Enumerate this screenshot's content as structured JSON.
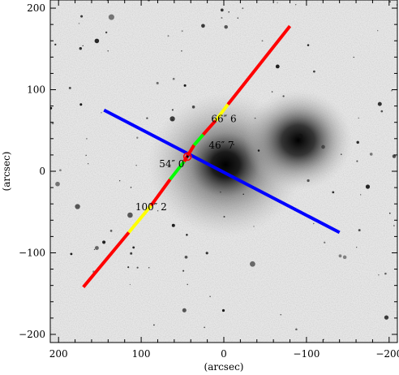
{
  "chart_data": {
    "type": "scatter",
    "title": "",
    "xlabel": "(arcsec)",
    "ylabel": "(arcsec)",
    "xlim": [
      210,
      -210
    ],
    "ylim": [
      -210,
      210
    ],
    "x_ticks": [
      200,
      100,
      0,
      -100,
      -200
    ],
    "x_tick_labels": [
      "200",
      "100",
      "0",
      "−100",
      "−200"
    ],
    "y_ticks": [
      -200,
      -100,
      0,
      100,
      200
    ],
    "y_tick_labels": [
      "−200",
      "−100",
      "0",
      "100",
      "200"
    ],
    "background": "grayscale sky image of galaxy field",
    "galaxies": [
      {
        "x": -2,
        "y": 8,
        "size": 40,
        "name": "central-galaxy"
      },
      {
        "x": -90,
        "y": 38,
        "size": 28,
        "name": "bright-galaxy-east"
      }
    ],
    "lines": [
      {
        "name": "blue-slit",
        "color": "#0000ff",
        "points": [
          [
            145,
            75
          ],
          [
            -140,
            -75
          ]
        ]
      },
      {
        "name": "color-coded-slit",
        "segments": [
          {
            "from": [
              170,
              -142
            ],
            "to": [
              115,
              -75
            ],
            "color": "#ff0000"
          },
          {
            "from": [
              115,
              -75
            ],
            "to": [
              88,
              -42
            ],
            "color": "#ffff00"
          },
          {
            "from": [
              88,
              -42
            ],
            "to": [
              65,
              -10
            ],
            "color": "#ff0000"
          },
          {
            "from": [
              65,
              -10
            ],
            "to": [
              48,
              12
            ],
            "color": "#00ff00"
          },
          {
            "from": [
              48,
              12
            ],
            "to": [
              36,
              32
            ],
            "color": "#ff0000"
          },
          {
            "from": [
              36,
              32
            ],
            "to": [
              25,
              45
            ],
            "color": "#00ff00"
          },
          {
            "from": [
              25,
              45
            ],
            "to": [
              10,
              62
            ],
            "color": "#ff0000"
          },
          {
            "from": [
              10,
              62
            ],
            "to": [
              -5,
              82
            ],
            "color": "#ffff00"
          },
          {
            "from": [
              -5,
              82
            ],
            "to": [
              -80,
              178
            ],
            "color": "#ff0000"
          }
        ]
      }
    ],
    "marker": {
      "x": 44,
      "y": 18,
      "color": "#ff0000",
      "shape": "circle"
    },
    "annotations": [
      {
        "text": "66″ 6",
        "x": 0,
        "y": 60
      },
      {
        "text": "46″ 7",
        "x": 3,
        "y": 28
      },
      {
        "text": "54″ 0",
        "x": 63,
        "y": 5
      },
      {
        "text": "100″ 2",
        "x": 88,
        "y": -48
      }
    ]
  }
}
